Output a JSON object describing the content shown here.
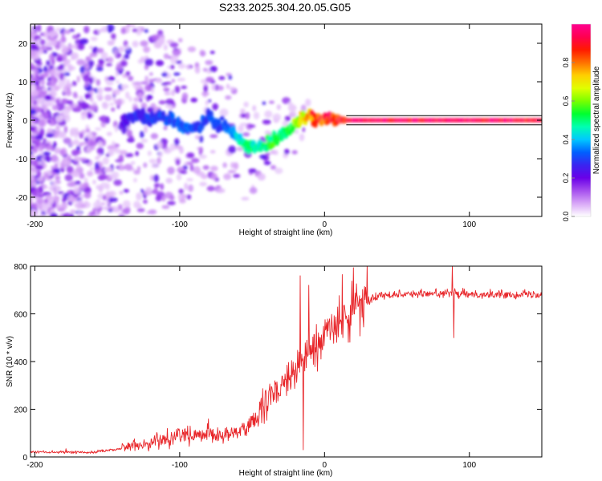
{
  "title": "S233.2025.304.20.05.G05",
  "chart_data": [
    {
      "type": "heatmap",
      "xlabel": "Height of straight line (km)",
      "ylabel": "Frequency (Hz)",
      "xlim": [
        -203,
        150
      ],
      "ylim": [
        -25,
        25
      ],
      "xticks": [
        -200,
        -100,
        0,
        100
      ],
      "xtick_labels": [
        "-200",
        "-100",
        "0",
        "100"
      ],
      "yticks": [
        -20,
        -10,
        0,
        10,
        20
      ],
      "ytick_labels": [
        "-20",
        "-10",
        "0",
        "10",
        "20"
      ],
      "colorbar": {
        "label": "Normalized spectral amplitude",
        "range": [
          0,
          1
        ],
        "ticks": [
          0.0,
          0.2,
          0.4,
          0.6,
          0.8
        ],
        "tick_labels": [
          "0.0",
          "0.2",
          "0.4",
          "0.6",
          "0.8"
        ],
        "colors": [
          "#ffffff",
          "#d9a8f7",
          "#a650ee",
          "#6a00e8",
          "#3a24f0",
          "#0060ff",
          "#00c8ff",
          "#00ffb0",
          "#00ff30",
          "#7aff00",
          "#e0ff00",
          "#ffcf00",
          "#ff7000",
          "#ff1a00",
          "#ff0050",
          "#ff0090"
        ]
      },
      "ridge_x": [
        -140,
        -130,
        -120,
        -110,
        -100,
        -90,
        -80,
        -70,
        -60,
        -55,
        -50,
        -45,
        -40,
        -35,
        -30,
        -25,
        -20,
        -15,
        -10,
        -5,
        0,
        5,
        10,
        15,
        20,
        40,
        60,
        80,
        100,
        120,
        150
      ],
      "ridge_y": [
        -1,
        1,
        0.5,
        1.5,
        -1.5,
        -2.5,
        0.5,
        -1.5,
        -4,
        -6.5,
        -7,
        -6.5,
        -6.5,
        -5.5,
        -4,
        -2.5,
        -1,
        0.5,
        0.5,
        0,
        0,
        0.5,
        0.2,
        0,
        0,
        0,
        0,
        0,
        0,
        0,
        0
      ],
      "ridge_amp": [
        0.22,
        0.28,
        0.3,
        0.3,
        0.33,
        0.33,
        0.3,
        0.3,
        0.42,
        0.5,
        0.5,
        0.48,
        0.5,
        0.55,
        0.5,
        0.5,
        0.62,
        0.72,
        0.82,
        0.85,
        0.9,
        0.92,
        0.92,
        0.95,
        0.98,
        0.98,
        0.98,
        0.98,
        0.98,
        0.97,
        0.95
      ],
      "reference_line_y": 0
    },
    {
      "type": "line",
      "color": "#e8262a",
      "xlabel": "Height of straight line (km)",
      "ylabel": "SNR (10 * v/v)",
      "xlim": [
        -203,
        150
      ],
      "ylim": [
        0,
        800
      ],
      "xticks": [
        -200,
        -100,
        0,
        100
      ],
      "xtick_labels": [
        "-200",
        "-100",
        "0",
        "100"
      ],
      "yticks": [
        0,
        200,
        400,
        600,
        800
      ],
      "ytick_labels": [
        "0",
        "200",
        "400",
        "600",
        "800"
      ],
      "trend_x": [
        -203,
        -160,
        -140,
        -120,
        -100,
        -80,
        -60,
        -45,
        -35,
        -25,
        -18,
        -12,
        -5,
        0,
        10,
        20,
        30,
        40,
        60,
        80,
        100,
        120,
        150
      ],
      "trend_y": [
        20,
        20,
        35,
        60,
        90,
        85,
        100,
        170,
        260,
        330,
        380,
        420,
        470,
        510,
        560,
        620,
        660,
        680,
        685,
        685,
        682,
        682,
        680
      ],
      "spikes": [
        {
          "x": -17,
          "y": 760
        },
        {
          "x": -15,
          "y": 30
        },
        {
          "x": -11,
          "y": 720
        },
        {
          "x": 88,
          "y": 800
        },
        {
          "x": 89,
          "y": 500
        }
      ]
    }
  ]
}
